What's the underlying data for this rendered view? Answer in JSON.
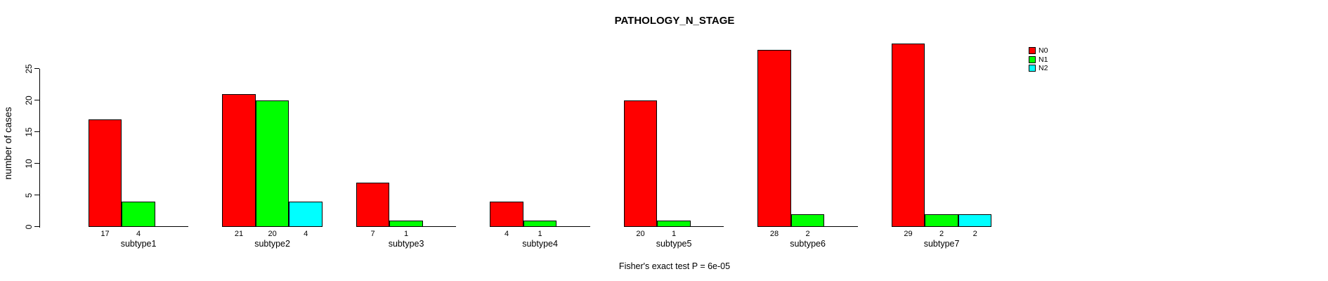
{
  "chart_data": {
    "type": "bar",
    "title": "PATHOLOGY_N_STAGE",
    "xlabel": "",
    "ylabel": "number of cases",
    "annotation": "Fisher's exact test P = 6e-05",
    "categories": [
      "subtype1",
      "subtype2",
      "subtype3",
      "subtype4",
      "subtype5",
      "subtype6",
      "subtype7"
    ],
    "series": [
      {
        "name": "N0",
        "color": "#FF0000",
        "values": [
          17,
          21,
          7,
          4,
          20,
          28,
          29
        ]
      },
      {
        "name": "N1",
        "color": "#00FF00",
        "values": [
          4,
          20,
          1,
          1,
          1,
          2,
          2
        ]
      },
      {
        "name": "N2",
        "color": "#00FFFF",
        "values": [
          0,
          4,
          0,
          0,
          0,
          0,
          2
        ]
      }
    ],
    "bar_value_labels_shown": true,
    "zero_value_bars_hidden": true,
    "ylim": [
      0,
      25
    ],
    "yticks": [
      0,
      5,
      10,
      15,
      20,
      25
    ],
    "grid": false,
    "legend": {
      "position": "top-right",
      "entries": [
        "N0",
        "N1",
        "N2"
      ]
    },
    "background": "#FFFFFF",
    "text_color": "#000000",
    "bar_colors": {
      "N0": "#FF0000",
      "N1": "#00FF00",
      "N2": "#00FFFF"
    }
  }
}
